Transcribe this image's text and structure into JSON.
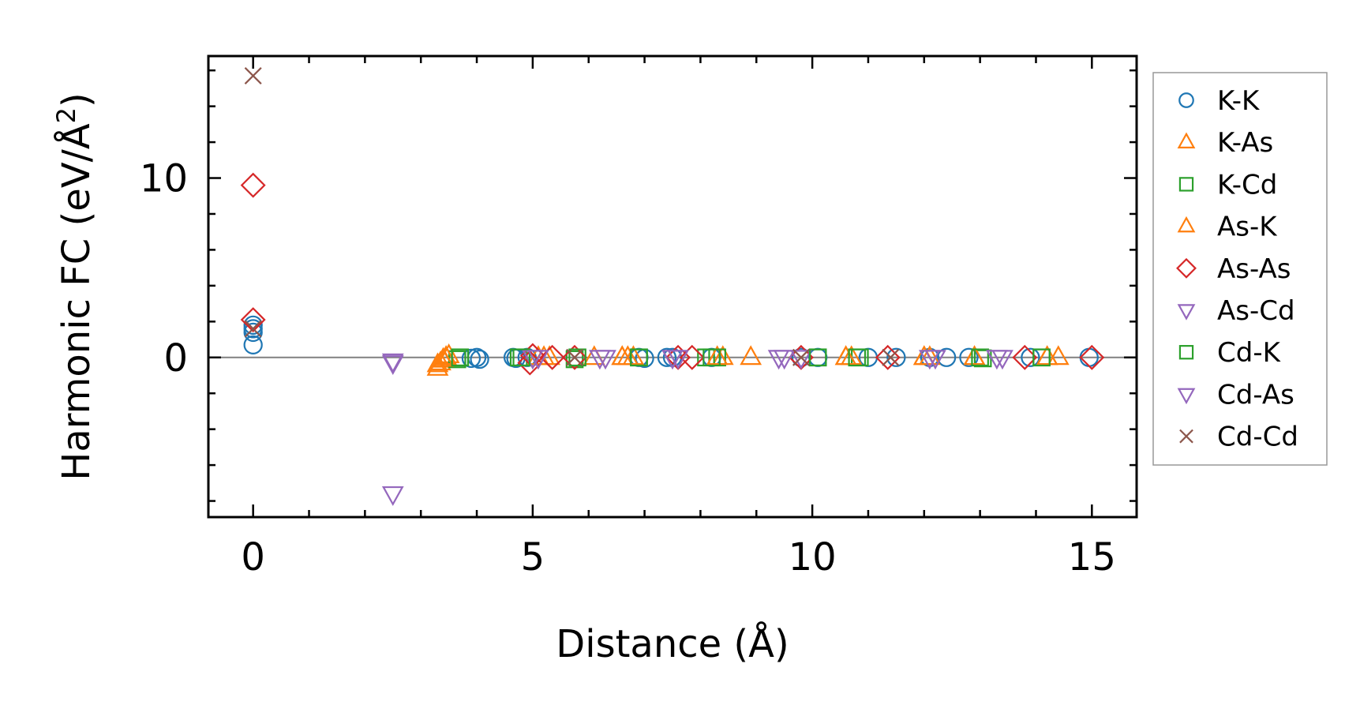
{
  "chart_data": {
    "type": "scatter",
    "xlabel": "Distance (Å)",
    "ylabel_main": "Harmonic FC (eV/Å",
    "ylabel_sup": "2",
    "ylabel_close": ")",
    "xlim": [
      -0.8,
      15.8
    ],
    "ylim": [
      -8.9,
      16.8
    ],
    "x_ticks": [
      0,
      5,
      10,
      15
    ],
    "x_tick_labels": [
      "0",
      "5",
      "10",
      "15"
    ],
    "y_ticks": [
      0,
      10
    ],
    "y_tick_labels": [
      "0",
      "10"
    ],
    "x_minor_step": 1,
    "y_minor_step": 2,
    "zero_line": true,
    "grid": false,
    "legend_position": "outside-right",
    "series": [
      {
        "name": "K-K",
        "marker": "circle",
        "color": "#1f77b4",
        "x": [
          0,
          0,
          0,
          0,
          3.9,
          4.0,
          4.05,
          4.65,
          4.7,
          4.9,
          6.9,
          7.0,
          7.4,
          7.5,
          8.2,
          9.8,
          10.1,
          11.0,
          11.5,
          12.1,
          12.4,
          12.8,
          13.9,
          14.95
        ],
        "y": [
          0.7,
          1.4,
          1.6,
          1.8,
          -0.05,
          0.0,
          -0.1,
          0.0,
          -0.05,
          0.0,
          0.0,
          -0.05,
          0.0,
          0.0,
          0.0,
          0.0,
          0.0,
          0.0,
          0.0,
          0.0,
          0.0,
          0.0,
          0.0,
          0.0
        ]
      },
      {
        "name": "K-As",
        "marker": "triangle-up",
        "color": "#ff7f0e",
        "x": [
          3.3,
          3.35,
          3.4,
          3.45,
          3.5,
          5.1,
          5.3,
          6.1,
          6.6,
          6.7,
          6.8,
          8.4,
          8.9,
          10.6,
          10.7,
          12.0,
          12.1,
          12.9,
          14.2,
          14.4
        ],
        "y": [
          -0.6,
          -0.3,
          -0.15,
          0.0,
          0.1,
          0.0,
          0.0,
          0.0,
          0.0,
          0.0,
          0.0,
          0.0,
          0.0,
          0.0,
          0.0,
          0.0,
          0.0,
          0.0,
          0.0,
          0.0
        ]
      },
      {
        "name": "K-Cd",
        "marker": "square",
        "color": "#2ca02c",
        "x": [
          3.65,
          3.7,
          4.75,
          5.75,
          6.9,
          8.1,
          8.3,
          10.1,
          10.85,
          13.05,
          14.1
        ],
        "y": [
          -0.1,
          0.0,
          0.0,
          -0.1,
          0.0,
          0.0,
          0.0,
          0.0,
          0.0,
          -0.05,
          0.0
        ]
      },
      {
        "name": "As-K",
        "marker": "triangle-up",
        "color": "#ff7f0e",
        "x": [
          3.3,
          3.4,
          3.45,
          5.2,
          6.6,
          8.3,
          10.6,
          12.0,
          12.9,
          14.2
        ],
        "y": [
          -0.4,
          -0.1,
          0.0,
          0.0,
          0.0,
          0.0,
          0.0,
          0.0,
          0.0,
          0.0
        ]
      },
      {
        "name": "As-As",
        "marker": "diamond",
        "color": "#d62728",
        "x": [
          0,
          0,
          4.95,
          5.0,
          5.35,
          5.75,
          7.6,
          7.85,
          9.8,
          11.35,
          13.8,
          15.0
        ],
        "y": [
          9.6,
          2.1,
          -0.3,
          0.1,
          0.0,
          0.0,
          0.0,
          0.0,
          0.0,
          0.0,
          0.0,
          0.0
        ]
      },
      {
        "name": "As-Cd",
        "marker": "triangle-down",
        "color": "#9467bd",
        "x": [
          2.5,
          2.5,
          5.0,
          6.3,
          7.6,
          9.5,
          9.8,
          12.1,
          13.4
        ],
        "y": [
          -0.2,
          -7.6,
          0.0,
          0.0,
          0.0,
          0.0,
          0.0,
          0.0,
          0.0
        ]
      },
      {
        "name": "Cd-K",
        "marker": "square",
        "color": "#2ca02c",
        "x": [
          3.7,
          4.8,
          5.8,
          6.9,
          8.2,
          10.1,
          10.8,
          13.0,
          14.1
        ],
        "y": [
          0.0,
          0.0,
          0.0,
          0.0,
          0.0,
          0.0,
          0.0,
          0.0,
          0.0
        ]
      },
      {
        "name": "Cd-As",
        "marker": "triangle-down",
        "color": "#9467bd",
        "x": [
          2.5,
          5.1,
          6.2,
          7.5,
          9.4,
          12.2,
          13.3
        ],
        "y": [
          -0.3,
          0.0,
          0.0,
          0.0,
          0.0,
          0.0,
          0.0
        ]
      },
      {
        "name": "Cd-Cd",
        "marker": "x",
        "color": "#8c564b",
        "x": [
          0,
          0,
          5.75,
          9.8,
          11.4
        ],
        "y": [
          15.7,
          1.6,
          0.0,
          0.0,
          0.0
        ]
      }
    ]
  }
}
